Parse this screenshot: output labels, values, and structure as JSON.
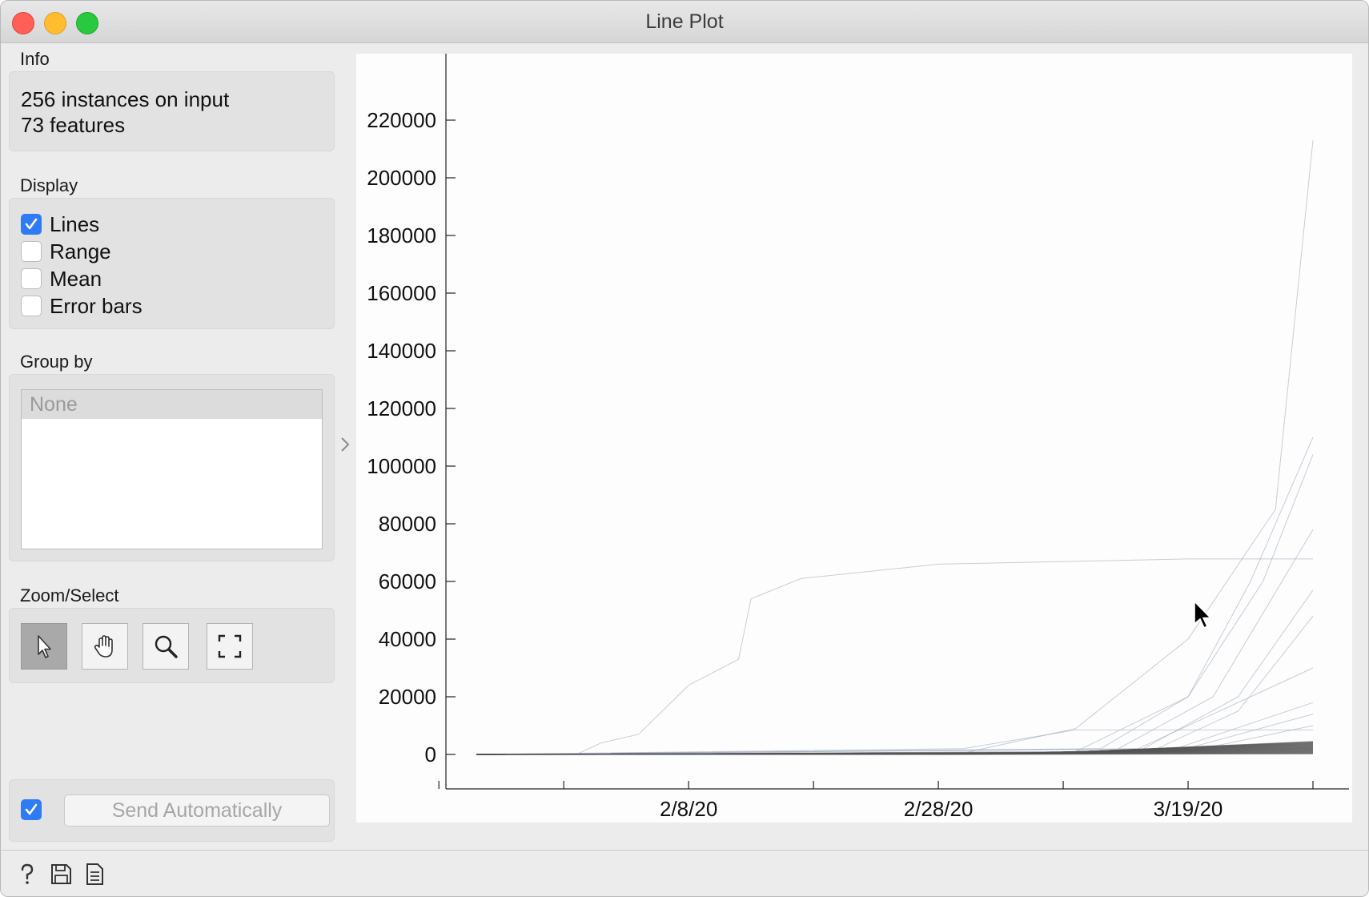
{
  "window": {
    "title": "Line Plot"
  },
  "info": {
    "label": "Info",
    "line1": "256 instances on input",
    "line2": "73 features"
  },
  "display": {
    "label": "Display",
    "options": [
      {
        "label": "Lines",
        "checked": true
      },
      {
        "label": "Range",
        "checked": false
      },
      {
        "label": "Mean",
        "checked": false
      },
      {
        "label": "Error bars",
        "checked": false
      }
    ]
  },
  "group_by": {
    "label": "Group by",
    "selected": "None"
  },
  "zoom_select": {
    "label": "Zoom/Select",
    "tools": [
      "select-arrow-icon",
      "pan-hand-icon",
      "zoom-magnifier-icon",
      "reset-zoom-icon"
    ],
    "active_tool": "select-arrow-icon"
  },
  "send": {
    "label": "Send Automatically",
    "auto_checked": true
  },
  "status_icons": [
    "help-icon",
    "save-icon",
    "report-icon"
  ],
  "colors": {
    "accent": "#2f7bf5",
    "line": "#9aa6b8"
  },
  "chart_data": {
    "type": "line",
    "title": "",
    "xlabel": "",
    "ylabel": "",
    "ylim": [
      0,
      220000
    ],
    "yticks": [
      0,
      20000,
      40000,
      60000,
      80000,
      100000,
      120000,
      140000,
      160000,
      180000,
      200000,
      220000
    ],
    "xlim": [
      "1/22/20",
      "3/29/20"
    ],
    "xtick_labels": [
      "2/8/20",
      "2/28/20",
      "3/19/20"
    ],
    "grid": false,
    "series_note_hidden": true,
    "series": [
      {
        "points": [
          [
            "1/22/20",
            0
          ],
          [
            "1/30/20",
            0
          ],
          [
            "2/1/20",
            4000
          ],
          [
            "2/4/20",
            7000
          ],
          [
            "2/8/20",
            24000
          ],
          [
            "2/12/20",
            33000
          ],
          [
            "2/13/20",
            54000
          ],
          [
            "2/17/20",
            61000
          ],
          [
            "2/28/20",
            66000
          ],
          [
            "3/19/20",
            67800
          ],
          [
            "3/29/20",
            67800
          ]
        ]
      },
      {
        "points": [
          [
            "1/22/20",
            0
          ],
          [
            "3/1/20",
            500
          ],
          [
            "3/10/20",
            9000
          ],
          [
            "3/19/20",
            40000
          ],
          [
            "3/26/20",
            85000
          ],
          [
            "3/29/20",
            213000
          ]
        ]
      },
      {
        "points": [
          [
            "1/22/20",
            0
          ],
          [
            "3/10/20",
            1000
          ],
          [
            "3/19/20",
            20000
          ],
          [
            "3/24/20",
            60000
          ],
          [
            "3/29/20",
            110000
          ]
        ]
      },
      {
        "points": [
          [
            "1/22/20",
            0
          ],
          [
            "3/12/20",
            2000
          ],
          [
            "3/19/20",
            20000
          ],
          [
            "3/25/20",
            60000
          ],
          [
            "3/29/20",
            104000
          ]
        ]
      },
      {
        "points": [
          [
            "1/22/20",
            0
          ],
          [
            "3/13/20",
            1000
          ],
          [
            "3/21/20",
            20000
          ],
          [
            "3/29/20",
            78000
          ]
        ]
      },
      {
        "points": [
          [
            "1/22/20",
            0
          ],
          [
            "3/15/20",
            1000
          ],
          [
            "3/23/20",
            20000
          ],
          [
            "3/29/20",
            57000
          ]
        ]
      },
      {
        "points": [
          [
            "1/22/20",
            0
          ],
          [
            "3/16/20",
            1000
          ],
          [
            "3/23/20",
            15000
          ],
          [
            "3/29/20",
            48000
          ]
        ]
      },
      {
        "points": [
          [
            "1/22/20",
            0
          ],
          [
            "3/1/20",
            2000
          ],
          [
            "3/10/20",
            8500
          ],
          [
            "3/29/20",
            8500
          ]
        ]
      },
      {
        "points": [
          [
            "1/22/20",
            0
          ],
          [
            "3/15/20",
            2000
          ],
          [
            "3/29/20",
            30000
          ]
        ]
      },
      {
        "points": [
          [
            "1/22/20",
            0
          ],
          [
            "3/18/20",
            2000
          ],
          [
            "3/29/20",
            18000
          ]
        ]
      },
      {
        "points": [
          [
            "1/22/20",
            0
          ],
          [
            "3/18/20",
            1000
          ],
          [
            "3/29/20",
            14000
          ]
        ]
      },
      {
        "points": [
          [
            "1/22/20",
            0
          ],
          [
            "3/19/20",
            1000
          ],
          [
            "3/29/20",
            10000
          ]
        ]
      }
    ]
  }
}
